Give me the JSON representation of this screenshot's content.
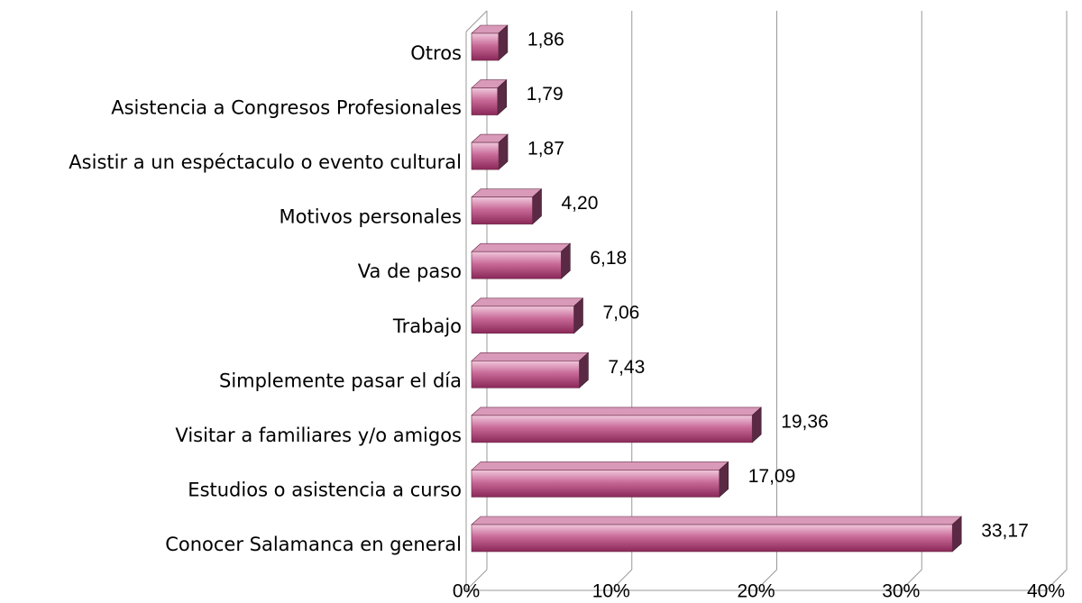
{
  "chart_data": {
    "type": "bar",
    "orientation": "horizontal",
    "categories": [
      "Otros",
      "Asistencia a Congresos Profesionales",
      "Asistir a un espéctaculo o evento cultural",
      "Motivos personales",
      "Va de paso",
      "Trabajo",
      "Simplemente pasar el día",
      "Visitar a familiares y/o amigos",
      "Estudios o asistencia a curso",
      "Conocer Salamanca en general"
    ],
    "values": [
      1.86,
      1.79,
      1.87,
      4.2,
      6.18,
      7.06,
      7.43,
      19.36,
      17.09,
      33.17
    ],
    "value_labels": [
      "1,86",
      "1,79",
      "1,87",
      "4,20",
      "6,18",
      "7,06",
      "7,43",
      "19,36",
      "17,09",
      "33,17"
    ],
    "color": "#a8386e",
    "xlim": [
      0,
      40
    ],
    "xticks": [
      {
        "value": 0,
        "label": "0%"
      },
      {
        "value": 10,
        "label": "10%"
      },
      {
        "value": 20,
        "label": "20%"
      },
      {
        "value": 30,
        "label": "30%"
      },
      {
        "value": 40,
        "label": "40%"
      }
    ],
    "grid": true
  }
}
